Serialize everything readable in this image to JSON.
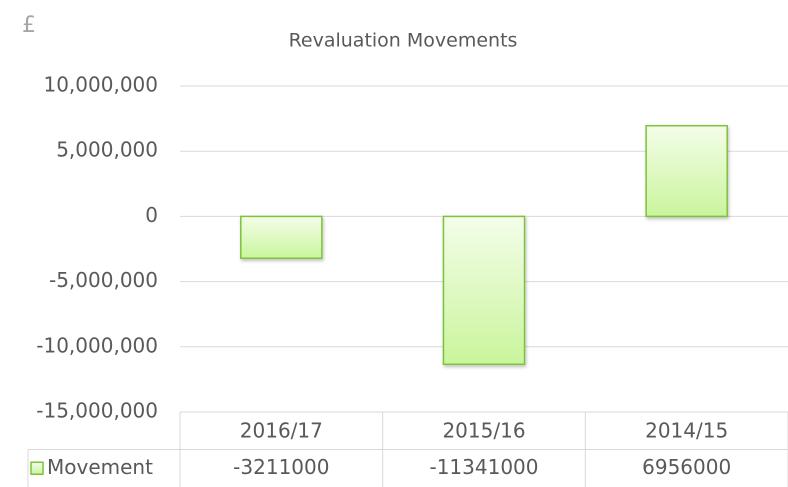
{
  "chart_data": {
    "type": "bar",
    "title": "Revaluation Movements",
    "y_label": "£",
    "categories": [
      "2016/17",
      "2015/16",
      "2014/15"
    ],
    "series": [
      {
        "name": "Movement",
        "color": "#7cc23a",
        "values": [
          -3211000,
          -11341000,
          6956000
        ]
      }
    ],
    "ylim": [
      -15000000,
      10000000
    ],
    "yticks": [
      {
        "value": -15000000,
        "label": "-15,000,000"
      },
      {
        "value": -10000000,
        "label": "-10,000,000"
      },
      {
        "value": -5000000,
        "label": "-5,000,000"
      },
      0,
      {
        "value": 5000000,
        "label": "5,000,000"
      },
      {
        "value": 10000000,
        "label": "10,000,000"
      }
    ],
    "grid": true,
    "data_table": true
  }
}
